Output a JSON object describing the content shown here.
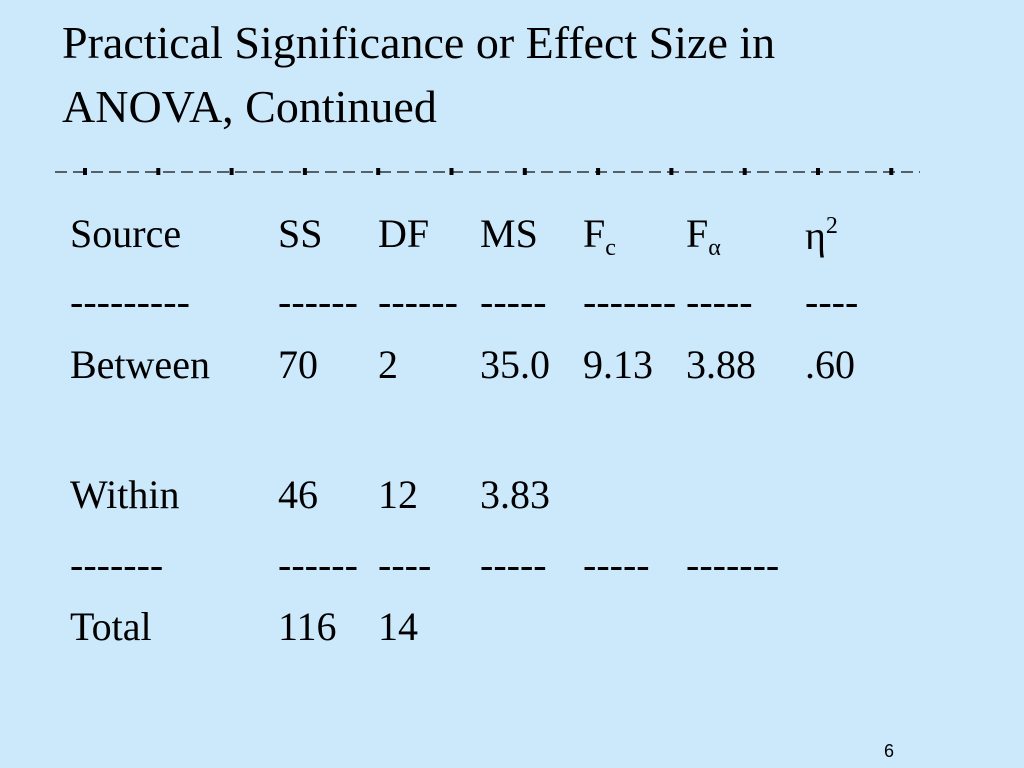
{
  "slide": {
    "title_lines": [
      "Practical Significance or Effect Size in",
      "ANOVA, Continued"
    ],
    "page_number": "6"
  },
  "table": {
    "header": [
      "Source",
      "SS",
      "DF",
      "MS",
      {
        "text": "F",
        "sub": "c"
      },
      {
        "text": "F",
        "sub": "α"
      },
      {
        "text": "η",
        "sup": "2"
      }
    ],
    "rows": [
      [
        "---------",
        "------",
        "------",
        "-----",
        "-------",
        "-----",
        "----"
      ],
      [
        "Between",
        "70",
        "2",
        "35.0",
        "9.13",
        "3.88",
        ".60"
      ],
      [
        "Within",
        "46",
        "12",
        "3.83"
      ],
      [
        "-------",
        "------",
        "----",
        "-----",
        "-----",
        "-------"
      ],
      [
        "Total",
        "116",
        "14"
      ]
    ]
  }
}
